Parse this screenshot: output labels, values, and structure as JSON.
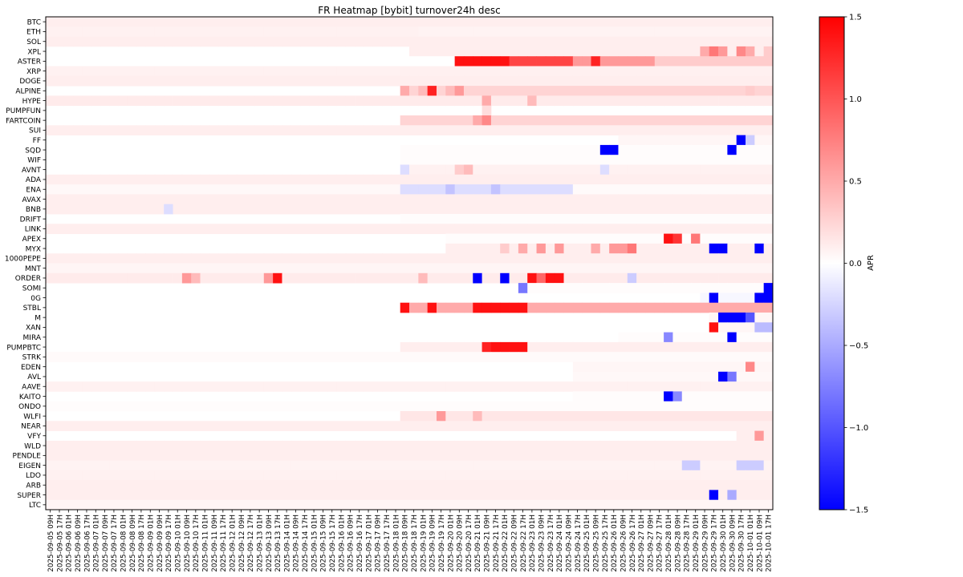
{
  "chart_data": {
    "type": "heatmap",
    "title": "FR Heatmap [bybit] turnover24h desc",
    "colorbar": {
      "label": "APR",
      "range": [
        -1.5,
        1.5
      ],
      "ticks": [
        1.5,
        1.0,
        0.5,
        0.0,
        -0.5,
        -1.0,
        -1.5
      ],
      "tick_labels": [
        "1.5",
        "1.0",
        "0.5",
        "0.0",
        "−0.5",
        "−1.0",
        "−1.5"
      ],
      "colormap": "bwr",
      "colors": {
        "low": "#0000ff",
        "mid": "#ffffff",
        "high": "#ff0000"
      }
    },
    "rows": [
      "BTC",
      "ETH",
      "SOL",
      "XPL",
      "ASTER",
      "XRP",
      "DOGE",
      "ALPINE",
      "HYPE",
      "PUMPFUN",
      "FARTCOIN",
      "SUI",
      "FF",
      "SQD",
      "WIF",
      "AVNT",
      "ADA",
      "ENA",
      "AVAX",
      "BNB",
      "DRIFT",
      "LINK",
      "APEX",
      "MYX",
      "1000PEPE",
      "MNT",
      "ORDER",
      "SOMI",
      "0G",
      "STBL",
      "M",
      "XAN",
      "MIRA",
      "PUMPBTC",
      "STRK",
      "EDEN",
      "AVL",
      "AAVE",
      "KAITO",
      "ONDO",
      "WLFI",
      "NEAR",
      "VFY",
      "WLD",
      "PENDLE",
      "EIGEN",
      "LDO",
      "ARB",
      "SUPER",
      "LTC"
    ],
    "x_start": "2025-09-05 09H",
    "x_step_hours": 8,
    "columns": [
      "2025-09-05 09H",
      "2025-09-05 17H",
      "2025-09-06 01H",
      "2025-09-06 09H",
      "2025-09-06 17H",
      "2025-09-07 01H",
      "2025-09-07 09H",
      "2025-09-07 17H",
      "2025-09-08 01H",
      "2025-09-08 09H",
      "2025-09-08 17H",
      "2025-09-09 01H",
      "2025-09-09 09H",
      "2025-09-09 17H",
      "2025-09-10 01H",
      "2025-09-10 09H",
      "2025-09-10 17H",
      "2025-09-11 01H",
      "2025-09-11 09H",
      "2025-09-11 17H",
      "2025-09-12 01H",
      "2025-09-12 09H",
      "2025-09-12 17H",
      "2025-09-13 01H",
      "2025-09-13 09H",
      "2025-09-13 17H",
      "2025-09-14 01H",
      "2025-09-14 09H",
      "2025-09-14 17H",
      "2025-09-15 01H",
      "2025-09-15 09H",
      "2025-09-15 17H",
      "2025-09-16 01H",
      "2025-09-16 09H",
      "2025-09-16 17H",
      "2025-09-17 01H",
      "2025-09-17 09H",
      "2025-09-17 17H",
      "2025-09-18 01H",
      "2025-09-18 09H",
      "2025-09-18 17H",
      "2025-09-19 01H",
      "2025-09-19 09H",
      "2025-09-19 17H",
      "2025-09-20 01H",
      "2025-09-20 09H",
      "2025-09-20 17H",
      "2025-09-21 01H",
      "2025-09-21 09H",
      "2025-09-21 17H",
      "2025-09-22 01H",
      "2025-09-22 09H",
      "2025-09-22 17H",
      "2025-09-23 01H",
      "2025-09-23 09H",
      "2025-09-23 17H",
      "2025-09-24 01H",
      "2025-09-24 09H",
      "2025-09-24 17H",
      "2025-09-25 01H",
      "2025-09-25 09H",
      "2025-09-25 17H",
      "2025-09-26 01H",
      "2025-09-26 09H",
      "2025-09-26 17H",
      "2025-09-27 01H",
      "2025-09-27 09H",
      "2025-09-27 17H",
      "2025-09-28 01H",
      "2025-09-28 09H",
      "2025-09-28 17H",
      "2025-09-29 01H",
      "2025-09-29 09H",
      "2025-09-29 17H",
      "2025-09-30 01H",
      "2025-09-30 09H",
      "2025-09-30 17H",
      "2025-10-01 01H",
      "2025-10-01 09H",
      "2025-10-01 17H"
    ],
    "x_tick_labels": [
      "2025-09-05 09H",
      "2025-09-05 17H",
      "2025-09-06 01H",
      "2025-09-06 09H",
      "2025-09-06 17H",
      "2025-09-07 01H",
      "2025-09-07 09H",
      "2025-09-07 17H",
      "2025-09-08 01H",
      "2025-09-08 09H",
      "2025-09-08 17H",
      "2025-09-09 01H",
      "2025-09-09 09H",
      "2025-09-09 17H",
      "2025-09-10 01H",
      "2025-09-10 09H",
      "2025-09-10 17H",
      "2025-09-11 01H",
      "2025-09-11 09H",
      "2025-09-11 17H",
      "2025-09-12 01H",
      "2025-09-12 09H",
      "2025-09-12 17H",
      "2025-09-13 01H",
      "2025-09-13 09H",
      "2025-09-13 17H",
      "2025-09-14 01H",
      "2025-09-14 09H",
      "2025-09-14 17H",
      "2025-09-15 01H",
      "2025-09-15 09H",
      "2025-09-15 17H",
      "2025-09-16 01H",
      "2025-09-16 09H",
      "2025-09-16 17H",
      "2025-09-17 01H",
      "2025-09-17 09H",
      "2025-09-17 17H",
      "2025-09-18 01H",
      "2025-09-18 09H",
      "2025-09-18 17H",
      "2025-09-19 01H",
      "2025-09-19 09H",
      "2025-09-19 17H",
      "2025-09-20 01H",
      "2025-09-20 09H",
      "2025-09-20 17H",
      "2025-09-21 01H",
      "2025-09-21 09H",
      "2025-09-21 17H",
      "2025-09-22 01H",
      "2025-09-22 09H",
      "2025-09-22 17H",
      "2025-09-23 01H",
      "2025-09-23 09H",
      "2025-09-23 17H",
      "2025-09-24 01H",
      "2025-09-24 09H",
      "2025-09-24 17H",
      "2025-09-25 01H",
      "2025-09-25 09H",
      "2025-09-25 17H",
      "2025-09-26 01H",
      "2025-09-26 09H",
      "2025-09-26 17H",
      "2025-09-27 01H",
      "2025-09-27 09H",
      "2025-09-27 17H",
      "2025-09-28 01H",
      "2025-09-28 09H",
      "2025-09-28 17H",
      "2025-09-29 01H",
      "2025-09-29 09H",
      "2025-09-29 17H",
      "2025-09-30 01H",
      "2025-09-30 09H",
      "2025-09-30 17H",
      "2025-10-01 01H",
      "2025-10-01 09H",
      "2025-10-01 17H"
    ],
    "row_segments": {
      "BTC": [
        [
          0,
          79,
          0.1
        ]
      ],
      "ETH": [
        [
          0,
          40,
          0.08
        ],
        [
          41,
          79,
          0.07
        ]
      ],
      "SOL": [
        [
          0,
          79,
          0.1
        ]
      ],
      "XPL": [
        [
          40,
          79,
          0.1
        ]
      ],
      "ASTER": [
        [
          0,
          44,
          0.0
        ],
        [
          45,
          50,
          1.4
        ],
        [
          51,
          57,
          1.1
        ],
        [
          58,
          66,
          0.6
        ],
        [
          67,
          79,
          0.3
        ]
      ],
      "XRP": [
        [
          0,
          38,
          0.08
        ],
        [
          39,
          79,
          0.09
        ]
      ],
      "DOGE": [
        [
          0,
          79,
          0.1
        ]
      ],
      "ALPINE": [
        [
          39,
          79,
          0.25
        ]
      ],
      "HYPE": [
        [
          0,
          79,
          0.12
        ]
      ],
      "PUMPFUN": [
        [
          48,
          48,
          0.2
        ]
      ],
      "FARTCOIN": [
        [
          0,
          38,
          0.0
        ],
        [
          39,
          79,
          0.25
        ]
      ],
      "SUI": [
        [
          0,
          79,
          0.1
        ]
      ],
      "FF": [
        [
          63,
          79,
          0.05
        ]
      ],
      "SQD": [
        [
          39,
          79,
          0.02
        ]
      ],
      "WIF": [
        [
          39,
          79,
          0.02
        ]
      ],
      "AVNT": [
        [
          39,
          79,
          0.08
        ]
      ],
      "ADA": [
        [
          0,
          79,
          0.1
        ]
      ],
      "ENA": [
        [
          0,
          38,
          0.04
        ],
        [
          39,
          57,
          -0.2
        ],
        [
          58,
          79,
          0.03
        ]
      ],
      "AVAX": [
        [
          0,
          79,
          0.1
        ]
      ],
      "BNB": [
        [
          0,
          79,
          0.1
        ]
      ],
      "DRIFT": [
        [
          39,
          79,
          0.02
        ]
      ],
      "LINK": [
        [
          0,
          79,
          0.1
        ]
      ],
      "APEX": [
        [
          44,
          79,
          0.02
        ]
      ],
      "MYX": [
        [
          44,
          79,
          0.1
        ]
      ],
      "1000PEPE": [
        [
          0,
          79,
          0.1
        ]
      ],
      "MNT": [
        [
          0,
          79,
          0.06
        ]
      ],
      "ORDER": [
        [
          0,
          79,
          0.12
        ]
      ],
      "SOMI": [
        [
          52,
          79,
          0.02
        ]
      ],
      "0G": [
        [
          72,
          79,
          -0.05
        ]
      ],
      "STBL": [
        [
          39,
          79,
          0.5
        ]
      ],
      "M": [
        [
          73,
          79,
          0.05
        ]
      ],
      "XAN": [
        [
          74,
          79,
          0.05
        ]
      ],
      "MIRA": [
        [
          63,
          79,
          0.02
        ]
      ],
      "PUMPBTC": [
        [
          39,
          79,
          0.1
        ]
      ],
      "STRK": [
        [
          0,
          79,
          0.03
        ]
      ],
      "EDEN": [
        [
          58,
          79,
          0.05
        ]
      ],
      "AVL": [
        [
          58,
          79,
          0.04
        ]
      ],
      "AAVE": [
        [
          0,
          79,
          0.08
        ]
      ],
      "KAITO": [
        [
          58,
          79,
          0.02
        ]
      ],
      "ONDO": [
        [
          0,
          79,
          0.02
        ]
      ],
      "WLFI": [
        [
          39,
          79,
          0.15
        ]
      ],
      "NEAR": [
        [
          0,
          79,
          0.1
        ]
      ],
      "VFY": [
        [
          76,
          79,
          0.1
        ]
      ],
      "WLD": [
        [
          0,
          79,
          0.1
        ]
      ],
      "PENDLE": [
        [
          0,
          79,
          0.1
        ]
      ],
      "EIGEN": [
        [
          0,
          79,
          0.07
        ]
      ],
      "LDO": [
        [
          0,
          79,
          0.08
        ]
      ],
      "ARB": [
        [
          0,
          79,
          0.1
        ]
      ],
      "SUPER": [
        [
          0,
          79,
          0.1
        ]
      ],
      "LTC": [
        [
          0,
          79,
          0.06
        ]
      ]
    },
    "cells": [
      [
        "ASTER",
        60,
        1.3
      ],
      [
        "XPL",
        72,
        0.5
      ],
      [
        "XPL",
        73,
        0.8
      ],
      [
        "XPL",
        74,
        0.6
      ],
      [
        "XPL",
        76,
        0.7
      ],
      [
        "XPL",
        77,
        0.5
      ],
      [
        "XPL",
        79,
        0.3
      ],
      [
        "ALPINE",
        39,
        0.5
      ],
      [
        "ALPINE",
        41,
        0.4
      ],
      [
        "ALPINE",
        42,
        1.3
      ],
      [
        "ALPINE",
        44,
        0.4
      ],
      [
        "ALPINE",
        45,
        0.6
      ],
      [
        "ALPINE",
        77,
        0.3
      ],
      [
        "HYPE",
        48,
        0.5
      ],
      [
        "HYPE",
        53,
        0.4
      ],
      [
        "FARTCOIN",
        47,
        0.5
      ],
      [
        "FARTCOIN",
        48,
        0.7
      ],
      [
        "FF",
        76,
        -1.5
      ],
      [
        "FF",
        77,
        -0.3
      ],
      [
        "SQD",
        61,
        -1.5
      ],
      [
        "SQD",
        62,
        -1.5
      ],
      [
        "SQD",
        75,
        -1.5
      ],
      [
        "AVNT",
        39,
        -0.2
      ],
      [
        "AVNT",
        45,
        0.3
      ],
      [
        "AVNT",
        46,
        0.4
      ],
      [
        "AVNT",
        61,
        -0.2
      ],
      [
        "ENA",
        44,
        -0.35
      ],
      [
        "ENA",
        49,
        -0.35
      ],
      [
        "BNB",
        13,
        -0.2
      ],
      [
        "APEX",
        68,
        1.4
      ],
      [
        "APEX",
        69,
        1.2
      ],
      [
        "APEX",
        71,
        0.8
      ],
      [
        "MYX",
        50,
        0.3
      ],
      [
        "MYX",
        52,
        0.5
      ],
      [
        "MYX",
        54,
        0.6
      ],
      [
        "MYX",
        56,
        0.6
      ],
      [
        "MYX",
        60,
        0.5
      ],
      [
        "MYX",
        62,
        0.6
      ],
      [
        "MYX",
        63,
        0.6
      ],
      [
        "MYX",
        64,
        0.8
      ],
      [
        "MYX",
        73,
        -1.5
      ],
      [
        "MYX",
        74,
        -1.5
      ],
      [
        "MYX",
        78,
        -1.5
      ],
      [
        "ORDER",
        15,
        0.6
      ],
      [
        "ORDER",
        16,
        0.4
      ],
      [
        "ORDER",
        24,
        0.6
      ],
      [
        "ORDER",
        25,
        1.4
      ],
      [
        "ORDER",
        41,
        0.4
      ],
      [
        "ORDER",
        47,
        -1.5
      ],
      [
        "ORDER",
        50,
        -1.5
      ],
      [
        "ORDER",
        53,
        1.4
      ],
      [
        "ORDER",
        54,
        0.9
      ],
      [
        "ORDER",
        55,
        1.4
      ],
      [
        "ORDER",
        56,
        1.4
      ],
      [
        "ORDER",
        64,
        -0.3
      ],
      [
        "SOMI",
        52,
        -0.8
      ],
      [
        "SOMI",
        79,
        -1.5
      ],
      [
        "0G",
        73,
        -1.5
      ],
      [
        "0G",
        78,
        -1.5
      ],
      [
        "0G",
        79,
        -1.5
      ],
      [
        "STBL",
        39,
        1.4
      ],
      [
        "STBL",
        42,
        1.4
      ],
      [
        "STBL",
        47,
        1.4
      ],
      [
        "STBL",
        48,
        1.4
      ],
      [
        "STBL",
        49,
        1.4
      ],
      [
        "STBL",
        50,
        1.4
      ],
      [
        "STBL",
        51,
        1.4
      ],
      [
        "STBL",
        52,
        1.4
      ],
      [
        "STBL",
        45,
        0.5
      ],
      [
        "STBL",
        46,
        0.5
      ],
      [
        "M",
        74,
        -1.5
      ],
      [
        "M",
        75,
        -1.5
      ],
      [
        "M",
        76,
        -1.5
      ],
      [
        "M",
        77,
        -1.0
      ],
      [
        "XAN",
        73,
        1.4
      ],
      [
        "XAN",
        78,
        -0.4
      ],
      [
        "XAN",
        79,
        -0.4
      ],
      [
        "MIRA",
        68,
        -0.7
      ],
      [
        "MIRA",
        75,
        -1.5
      ],
      [
        "PUMPBTC",
        48,
        1.3
      ],
      [
        "PUMPBTC",
        49,
        1.4
      ],
      [
        "PUMPBTC",
        50,
        1.4
      ],
      [
        "PUMPBTC",
        51,
        1.4
      ],
      [
        "PUMPBTC",
        52,
        1.4
      ],
      [
        "EDEN",
        77,
        0.7
      ],
      [
        "AVL",
        74,
        -1.5
      ],
      [
        "AVL",
        75,
        -0.8
      ],
      [
        "KAITO",
        68,
        -1.5
      ],
      [
        "KAITO",
        69,
        -0.7
      ],
      [
        "WLFI",
        43,
        0.6
      ],
      [
        "WLFI",
        47,
        0.4
      ],
      [
        "VFY",
        78,
        0.6
      ],
      [
        "EIGEN",
        70,
        -0.3
      ],
      [
        "EIGEN",
        71,
        -0.3
      ],
      [
        "EIGEN",
        76,
        -0.3
      ],
      [
        "EIGEN",
        77,
        -0.3
      ],
      [
        "EIGEN",
        78,
        -0.3
      ],
      [
        "SUPER",
        73,
        -1.5
      ],
      [
        "SUPER",
        75,
        -0.5
      ]
    ]
  }
}
